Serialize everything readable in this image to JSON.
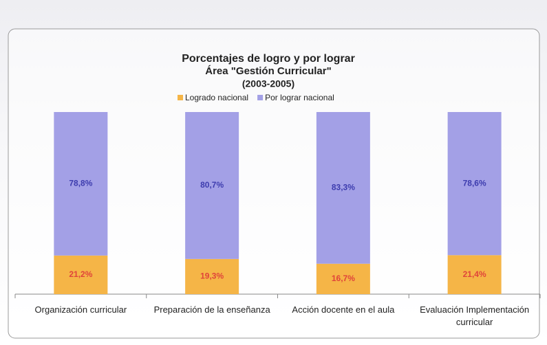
{
  "chart_data": {
    "type": "stacked_bar",
    "title": "Porcentajes de logro y por lograr",
    "subtitle": [
      "Área \"Gestión Curricular\"",
      "(2003-2005)"
    ],
    "categories": [
      "Organización curricular",
      "Preparación de la enseñanza",
      "Acción docente en el aula",
      "Evaluación Implementación curricular"
    ],
    "series": [
      {
        "name": "Logrado nacional",
        "color": "#f5b547",
        "label_color": "#e0443a",
        "values": [
          21.2,
          19.3,
          16.7,
          21.4
        ],
        "value_labels": [
          "21,2%",
          "19,3%",
          "16,7%",
          "21,4%"
        ]
      },
      {
        "name": "Por lograr nacional",
        "color": "#a3a0e6",
        "label_color": "#3d3cae",
        "values": [
          78.8,
          80.7,
          83.3,
          78.6
        ],
        "value_labels": [
          "78,8%",
          "80,7%",
          "83,3%",
          "78,6%"
        ]
      }
    ],
    "ylim": [
      0,
      100
    ]
  }
}
